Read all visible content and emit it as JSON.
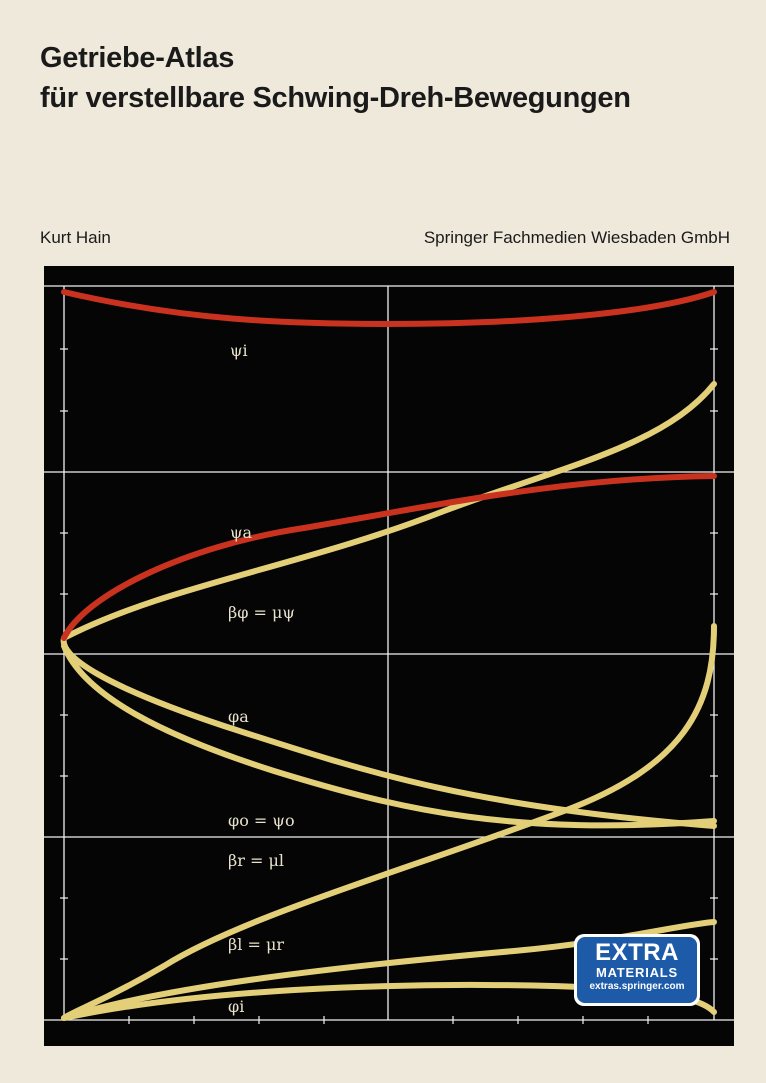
{
  "cover": {
    "title_line1": "Getriebe-Atlas",
    "title_line2": "für verstellbare Schwing-Dreh-Bewegungen",
    "author": "Kurt Hain",
    "publisher": "Springer Fachmedien Wiesbaden GmbH"
  },
  "colors": {
    "background": "#efe9dc",
    "chart_background": "#050505",
    "red_curve": "#c8321e",
    "yellow_curve": "#e3cf78",
    "grid": "#f2f2f2",
    "badge_blue": "#1d5aa8"
  },
  "chart": {
    "labels": {
      "psi_i": "ψi",
      "psi_a": "ψa",
      "beta_phi": "βφ = μψ",
      "phi_a": "φa",
      "phi_o": "φo = ψo",
      "beta_r": "βr = μl",
      "beta_l": "βl = μr",
      "phi_i": "φi"
    }
  },
  "badge": {
    "line1": "EXTRA",
    "line2": "MATERIALS",
    "line3": "extras.springer.com"
  }
}
